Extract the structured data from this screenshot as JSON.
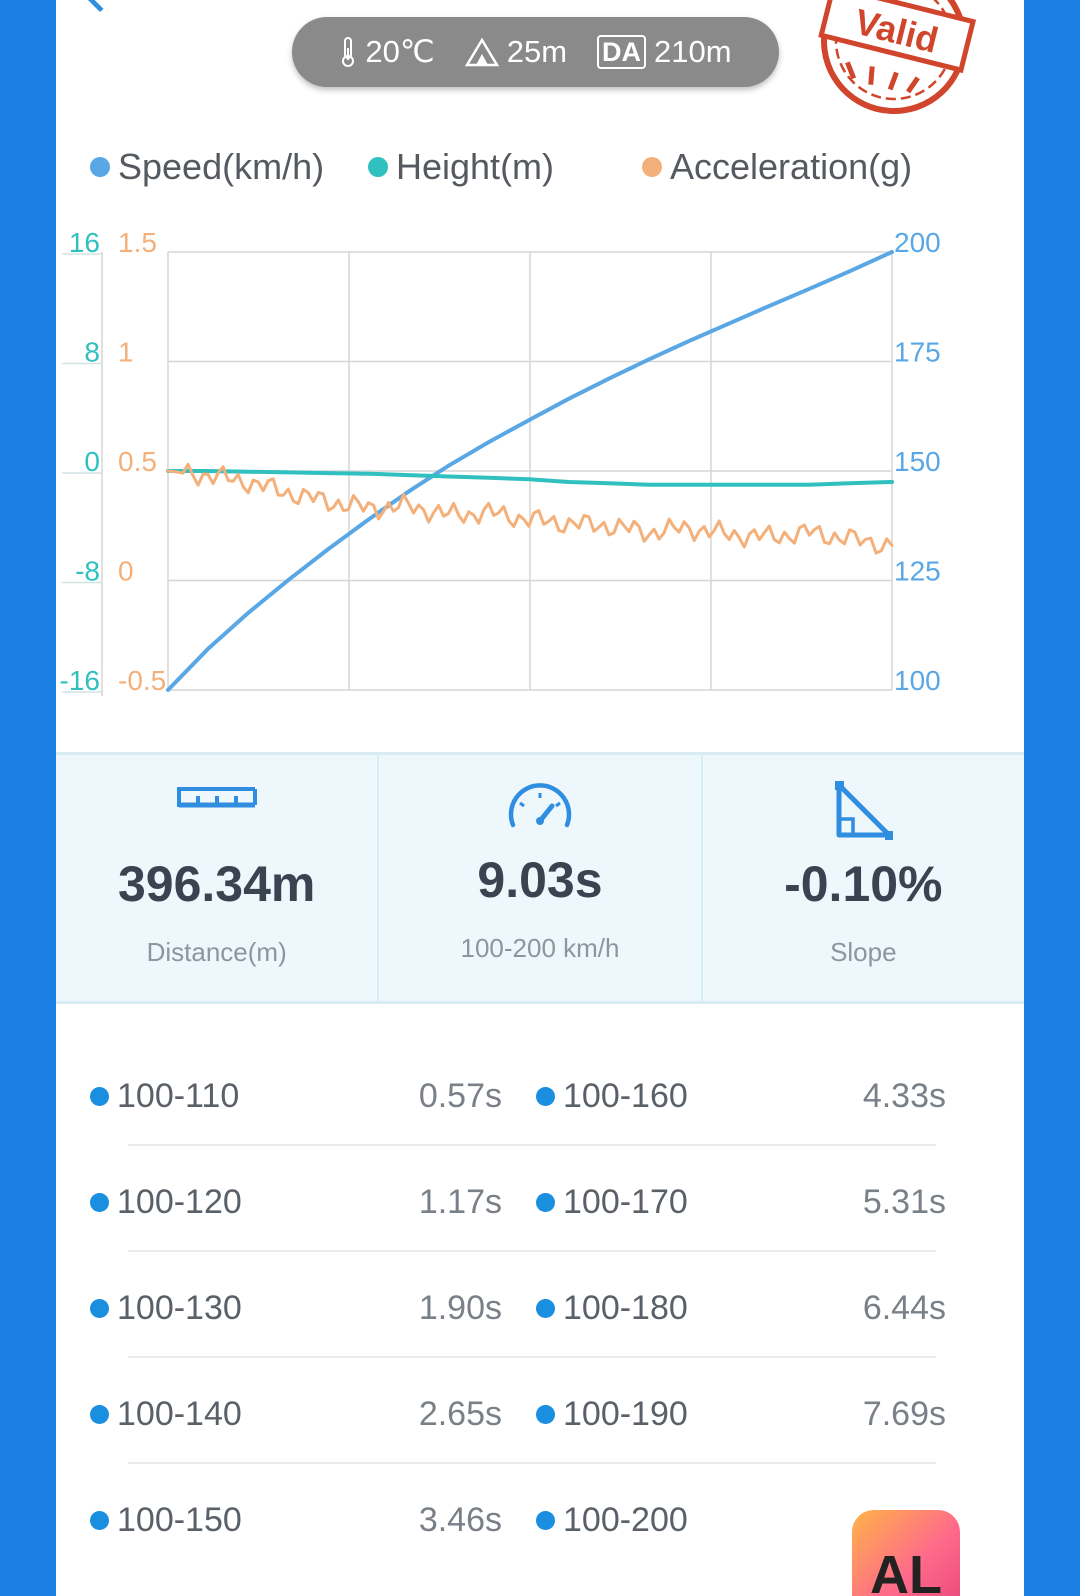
{
  "conditions": {
    "temperature": "20℃",
    "altitude": "25m",
    "da_badge": "DA",
    "density_altitude": "210m"
  },
  "stamp": {
    "text": "Valid",
    "color": "#d0452b"
  },
  "legend": [
    {
      "label": "Speed(km/h)",
      "color": "#5aa7e6"
    },
    {
      "label": "Height(m)",
      "color": "#2fc0bf"
    },
    {
      "label": "Acceleration(g)",
      "color": "#f4b07a"
    }
  ],
  "chart_data": {
    "type": "line",
    "x": [
      0,
      0.5,
      1,
      1.5,
      2,
      2.5,
      3,
      3.5,
      4,
      4.5,
      5,
      5.5,
      6,
      6.5,
      7,
      7.5,
      8,
      8.5,
      9.03
    ],
    "series": [
      {
        "name": "Speed(km/h)",
        "axis": "right",
        "color": "#5aa7e6",
        "values": [
          100,
          109.4,
          117.6,
          125.1,
          132.2,
          138.9,
          145.3,
          151.2,
          156.6,
          161.6,
          166.5,
          171.1,
          175.5,
          179.7,
          183.7,
          187.7,
          191.6,
          195.6,
          200
        ]
      },
      {
        "name": "Height(m)",
        "axis": "left_outer",
        "color": "#2fc0bf",
        "values": [
          0,
          0,
          -0.05,
          -0.1,
          -0.15,
          -0.2,
          -0.3,
          -0.4,
          -0.5,
          -0.6,
          -0.8,
          -0.9,
          -1.0,
          -1.0,
          -1.0,
          -1.0,
          -1.0,
          -0.9,
          -0.8
        ]
      },
      {
        "name": "Acceleration(g)",
        "axis": "left_inner",
        "color": "#f4b07a",
        "values": [
          0.5,
          0.48,
          0.45,
          0.4,
          0.36,
          0.33,
          0.34,
          0.3,
          0.31,
          0.28,
          0.26,
          0.25,
          0.22,
          0.24,
          0.21,
          0.2,
          0.22,
          0.19,
          0.16
        ]
      }
    ],
    "axes": {
      "left_outer": {
        "ticks": [
          "16",
          "8",
          "0",
          "-8",
          "-16"
        ],
        "range": [
          -16,
          16
        ],
        "color": "#2fc0bf"
      },
      "left_inner": {
        "ticks": [
          "1.5",
          "1",
          "0.5",
          "0",
          "-0.5"
        ],
        "range": [
          -0.5,
          1.5
        ],
        "color": "#f4b07a"
      },
      "right": {
        "ticks": [
          "200",
          "175",
          "150",
          "125",
          "100"
        ],
        "range": [
          100,
          200
        ],
        "color": "#5aa7e6"
      }
    },
    "grid": true,
    "legend_position": "top"
  },
  "stats": [
    {
      "value": "396.34m",
      "label": "Distance(m)",
      "icon": "ruler-icon"
    },
    {
      "value": "9.03s",
      "label": "100-200 km/h",
      "icon": "speedometer-icon"
    },
    {
      "value": "-0.10%",
      "label": "Slope",
      "icon": "slope-icon"
    }
  ],
  "splits": [
    {
      "left_label": "100-110",
      "left_time": "0.57s",
      "right_label": "100-160",
      "right_time": "4.33s"
    },
    {
      "left_label": "100-120",
      "left_time": "1.17s",
      "right_label": "100-170",
      "right_time": "5.31s"
    },
    {
      "left_label": "100-130",
      "left_time": "1.90s",
      "right_label": "100-180",
      "right_time": "6.44s"
    },
    {
      "left_label": "100-140",
      "left_time": "2.65s",
      "right_label": "100-190",
      "right_time": "7.69s"
    },
    {
      "left_label": "100-150",
      "left_time": "3.46s",
      "right_label": "100-200",
      "right_time": ""
    }
  ],
  "badge": {
    "text": "AL"
  }
}
